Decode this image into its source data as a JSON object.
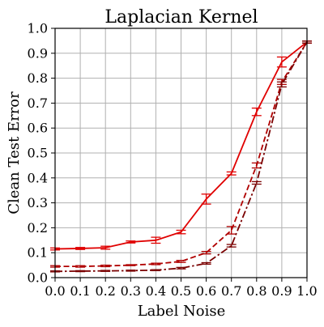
{
  "chart_data": {
    "type": "line",
    "title": "Laplacian Kernel",
    "xlabel": "Label Noise",
    "ylabel": "Clean Test Error",
    "xlim": [
      0.0,
      1.0
    ],
    "ylim": [
      0.0,
      1.0
    ],
    "grid": true,
    "x_ticks": [
      "0.0",
      "0.1",
      "0.2",
      "0.3",
      "0.4",
      "0.5",
      "0.6",
      "0.7",
      "0.8",
      "0.9",
      "1.0"
    ],
    "y_ticks": [
      "0.0",
      "0.1",
      "0.2",
      "0.3",
      "0.4",
      "0.5",
      "0.6",
      "0.7",
      "0.8",
      "0.9",
      "1.0"
    ],
    "x": [
      0.0,
      0.1,
      0.2,
      0.3,
      0.4,
      0.5,
      0.6,
      0.7,
      0.8,
      0.9,
      1.0
    ],
    "series": [
      {
        "color": "#e00000",
        "dash": "solid",
        "values": [
          0.115,
          0.117,
          0.12,
          0.143,
          0.15,
          0.183,
          0.315,
          0.418,
          0.665,
          0.865,
          0.945
        ],
        "errors": [
          0.004,
          0.004,
          0.006,
          0.004,
          0.012,
          0.007,
          0.02,
          0.006,
          0.015,
          0.02,
          0.004
        ]
      },
      {
        "color": "#b00000",
        "dash": "dashed",
        "values": [
          0.045,
          0.045,
          0.047,
          0.05,
          0.055,
          0.065,
          0.1,
          0.19,
          0.45,
          0.785,
          0.945
        ],
        "errors": [
          0.003,
          0.003,
          0.003,
          0.002,
          0.003,
          0.004,
          0.005,
          0.015,
          0.01,
          0.01,
          0.004
        ]
      },
      {
        "color": "#7a0000",
        "dash": "dashdot",
        "values": [
          0.025,
          0.026,
          0.027,
          0.028,
          0.03,
          0.038,
          0.057,
          0.128,
          0.38,
          0.775,
          0.945
        ],
        "errors": [
          0.002,
          0.002,
          0.002,
          0.002,
          0.002,
          0.003,
          0.003,
          0.005,
          0.005,
          0.01,
          0.004
        ]
      }
    ]
  }
}
